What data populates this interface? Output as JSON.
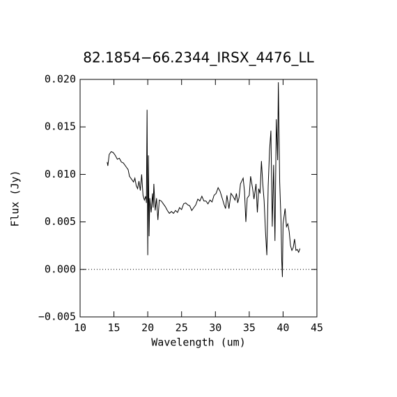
{
  "chart_data": {
    "type": "line",
    "title": "82.1854−66.2344_IRSX_4476_LL",
    "xlabel": "Wavelength (um)",
    "ylabel": "Flux (Jy)",
    "xlim": [
      10,
      45
    ],
    "ylim": [
      -0.005,
      0.02
    ],
    "xticks": [
      10,
      15,
      20,
      25,
      30,
      35,
      40,
      45
    ],
    "yticks": [
      {
        "value": 0.02,
        "label": "0.020"
      },
      {
        "value": 0.015,
        "label": "0.015"
      },
      {
        "value": 0.01,
        "label": "0.010"
      },
      {
        "value": 0.005,
        "label": "0.005"
      },
      {
        "value": 0,
        "label": "0.000"
      },
      {
        "value": -0.005,
        "label": "−0.005"
      }
    ],
    "reference_line": 0,
    "color": "#000000",
    "x": [
      14.0,
      14.1,
      14.3,
      14.6,
      14.9,
      15.2,
      15.5,
      15.8,
      16.1,
      16.4,
      16.8,
      17.1,
      17.3,
      17.6,
      17.9,
      18.1,
      18.3,
      18.5,
      18.7,
      18.9,
      19.1,
      19.3,
      19.5,
      19.7,
      19.8,
      19.9,
      20.0,
      20.1,
      20.2,
      20.3,
      20.5,
      20.7,
      20.8,
      20.9,
      21.1,
      21.3,
      21.5,
      21.7,
      22.0,
      22.3,
      22.6,
      22.9,
      23.2,
      23.5,
      23.8,
      24.1,
      24.4,
      24.7,
      25.0,
      25.3,
      25.6,
      25.9,
      26.2,
      26.5,
      26.8,
      27.1,
      27.4,
      27.7,
      28.0,
      28.3,
      28.6,
      28.9,
      29.2,
      29.5,
      29.8,
      30.1,
      30.4,
      30.7,
      31.0,
      31.3,
      31.5,
      31.7,
      32.0,
      32.3,
      32.6,
      32.9,
      33.1,
      33.3,
      33.5,
      33.7,
      33.9,
      34.1,
      34.3,
      34.5,
      34.7,
      35.0,
      35.2,
      35.5,
      35.7,
      36.0,
      36.2,
      36.4,
      36.6,
      36.8,
      37.0,
      37.2,
      37.4,
      37.6,
      37.8,
      38.0,
      38.2,
      38.4,
      38.6,
      38.8,
      39.0,
      39.2,
      39.3,
      39.5,
      39.7,
      39.8,
      39.9,
      40.0,
      40.3,
      40.5,
      40.7,
      40.9,
      41.1,
      41.3,
      41.5,
      41.7,
      41.9,
      42.1,
      42.3,
      42.5
    ],
    "values": [
      0.0113,
      0.0109,
      0.0121,
      0.0124,
      0.0123,
      0.012,
      0.0116,
      0.0117,
      0.0113,
      0.0112,
      0.0108,
      0.0105,
      0.0098,
      0.0095,
      0.0092,
      0.0096,
      0.0088,
      0.0085,
      0.0093,
      0.0083,
      0.01,
      0.0078,
      0.0073,
      0.0077,
      0.007,
      0.0168,
      0.0015,
      0.012,
      0.0035,
      0.0075,
      0.006,
      0.008,
      0.0065,
      0.009,
      0.0062,
      0.0075,
      0.0052,
      0.0073,
      0.0072,
      0.0069,
      0.0066,
      0.0062,
      0.0059,
      0.0061,
      0.0059,
      0.0062,
      0.006,
      0.0065,
      0.0063,
      0.0069,
      0.007,
      0.0068,
      0.0067,
      0.0062,
      0.0065,
      0.0068,
      0.0074,
      0.0072,
      0.0077,
      0.0072,
      0.0072,
      0.0069,
      0.0073,
      0.0071,
      0.0078,
      0.008,
      0.0086,
      0.0082,
      0.0075,
      0.0068,
      0.0064,
      0.0078,
      0.0064,
      0.008,
      0.0077,
      0.0073,
      0.008,
      0.007,
      0.0076,
      0.009,
      0.0093,
      0.0096,
      0.0082,
      0.005,
      0.0075,
      0.0078,
      0.0098,
      0.0085,
      0.0074,
      0.009,
      0.006,
      0.0085,
      0.008,
      0.0114,
      0.009,
      0.0072,
      0.004,
      0.0015,
      0.0088,
      0.0125,
      0.0146,
      0.0045,
      0.011,
      0.003,
      0.0158,
      0.0115,
      0.0197,
      0.0092,
      0.005,
      0.001,
      -0.0008,
      0.0048,
      0.0064,
      0.0045,
      0.0048,
      0.004,
      0.0025,
      0.002,
      0.0023,
      0.0032,
      0.002,
      0.0021,
      0.0018,
      0.0022
    ]
  }
}
